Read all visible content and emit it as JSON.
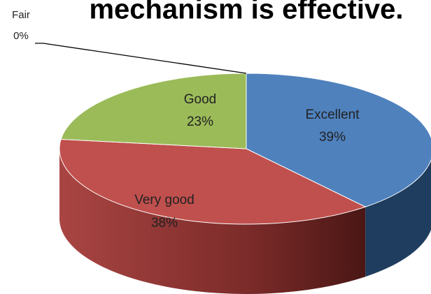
{
  "chart_data": {
    "type": "pie",
    "title": "mechanism is effective.",
    "categories": [
      "Excellent",
      "Very good",
      "Good",
      "Fair"
    ],
    "values": [
      39,
      38,
      23,
      0
    ],
    "value_labels": [
      "39%",
      "38%",
      "23%",
      "0%"
    ],
    "colors": [
      "#4f81bd",
      "#c0504d",
      "#9bbb59",
      "#8064a2"
    ],
    "side_colors": [
      "#1f3d5e",
      "#7a2a28",
      "#5e7530",
      "#4d3a66"
    ]
  }
}
